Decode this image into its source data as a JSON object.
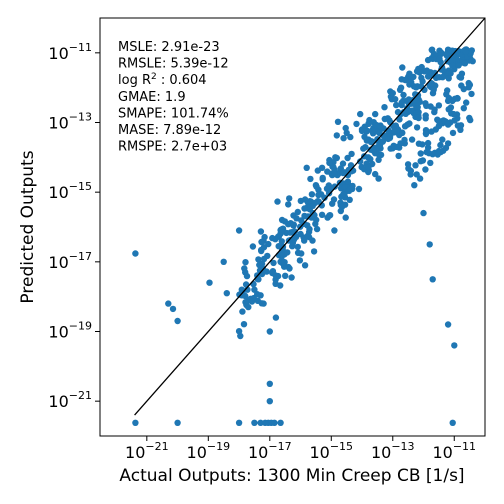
{
  "chart_data": {
    "type": "scatter",
    "xlabel": "Actual Outputs: 1300 Min Creep CB [1/s]",
    "ylabel": "Predicted Outputs",
    "xscale": "log",
    "yscale": "log",
    "xlim": [
      3e-23,
      1e-10
    ],
    "ylim": [
      1e-22,
      1e-10
    ],
    "x_ticks": [
      {
        "value": 1e-21,
        "base": "10",
        "exp": "−21"
      },
      {
        "value": 1e-19,
        "base": "10",
        "exp": "−19"
      },
      {
        "value": 1e-17,
        "base": "10",
        "exp": "−17"
      },
      {
        "value": 1e-15,
        "base": "10",
        "exp": "−15"
      },
      {
        "value": 1e-13,
        "base": "10",
        "exp": "−13"
      },
      {
        "value": 1e-11,
        "base": "10",
        "exp": "−11"
      }
    ],
    "y_ticks": [
      {
        "value": 1e-21,
        "base": "10",
        "exp": "−21"
      },
      {
        "value": 1e-19,
        "base": "10",
        "exp": "−19"
      },
      {
        "value": 1e-17,
        "base": "10",
        "exp": "−17"
      },
      {
        "value": 1e-15,
        "base": "10",
        "exp": "−15"
      },
      {
        "value": 1e-13,
        "base": "10",
        "exp": "−13"
      },
      {
        "value": 1e-11,
        "base": "10",
        "exp": "−11"
      }
    ],
    "grid": false,
    "marker_color": "#1f77b4",
    "reference_line": {
      "x": [
        4e-22,
        1e-10
      ],
      "y": [
        4e-22,
        1e-10
      ],
      "color": "#000000"
    },
    "stats": [
      {
        "label": "MSLE: 2.91e-23"
      },
      {
        "label": "RMSLE: 5.39e-12"
      },
      {
        "label": "log R",
        "sup": "2",
        "rest": " : 0.604"
      },
      {
        "label": "GMAE: 1.9"
      },
      {
        "label": "SMAPE: 101.74%"
      },
      {
        "label": "MASE: 7.89e-12"
      },
      {
        "label": "RMSPE: 2.7e+03"
      }
    ],
    "point_count_hint": 620,
    "log_points_sample": [
      [
        -21.37,
        -16.76
      ],
      [
        -21.37,
        -21.62
      ],
      [
        -20.3,
        -18.2
      ],
      [
        -20.15,
        -18.35
      ],
      [
        -20.0,
        -18.7
      ],
      [
        -20.0,
        -21.62
      ],
      [
        -18.96,
        -17.6
      ],
      [
        -18.5,
        -17.0
      ],
      [
        -18.4,
        -17.9
      ],
      [
        -18.0,
        -16.1
      ],
      [
        -17.8,
        -17.3
      ],
      [
        -17.5,
        -17.8
      ],
      [
        -17.7,
        -18.3
      ],
      [
        -17.2,
        -18.2
      ],
      [
        -17.0,
        -19.0
      ],
      [
        -17.0,
        -20.5
      ],
      [
        -17.0,
        -21.0
      ],
      [
        -16.8,
        -18.6
      ],
      [
        -16.5,
        -17.4
      ],
      [
        -17.2,
        -16.4
      ],
      [
        -16.6,
        -15.8
      ],
      [
        -18.0,
        -21.62
      ],
      [
        -17.5,
        -21.62
      ],
      [
        -17.3,
        -21.62
      ],
      [
        -17.15,
        -21.62
      ],
      [
        -17.05,
        -21.62
      ],
      [
        -16.95,
        -21.62
      ],
      [
        -16.85,
        -21.62
      ],
      [
        -16.65,
        -21.62
      ],
      [
        -12.0,
        -15.6
      ],
      [
        -11.8,
        -16.5
      ],
      [
        -11.7,
        -17.5
      ],
      [
        -11.2,
        -18.8
      ],
      [
        -11.05,
        -21.62
      ],
      [
        -11.0,
        -19.4
      ],
      [
        -14.5,
        -13.3
      ],
      [
        -14.0,
        -13.2
      ],
      [
        -13.8,
        -14.0
      ],
      [
        -12.5,
        -14.2
      ],
      [
        -12.3,
        -14.8
      ],
      [
        -11.5,
        -13.1
      ],
      [
        -11.2,
        -13.6
      ],
      [
        -10.8,
        -11.7
      ],
      [
        -10.9,
        -12.3
      ],
      [
        -10.7,
        -11.2
      ],
      [
        -10.75,
        -11.6
      ],
      [
        -15.5,
        -14.8
      ],
      [
        -15.9,
        -16.3
      ],
      [
        -15.3,
        -14.3
      ],
      [
        -14.9,
        -16.1
      ]
    ]
  }
}
